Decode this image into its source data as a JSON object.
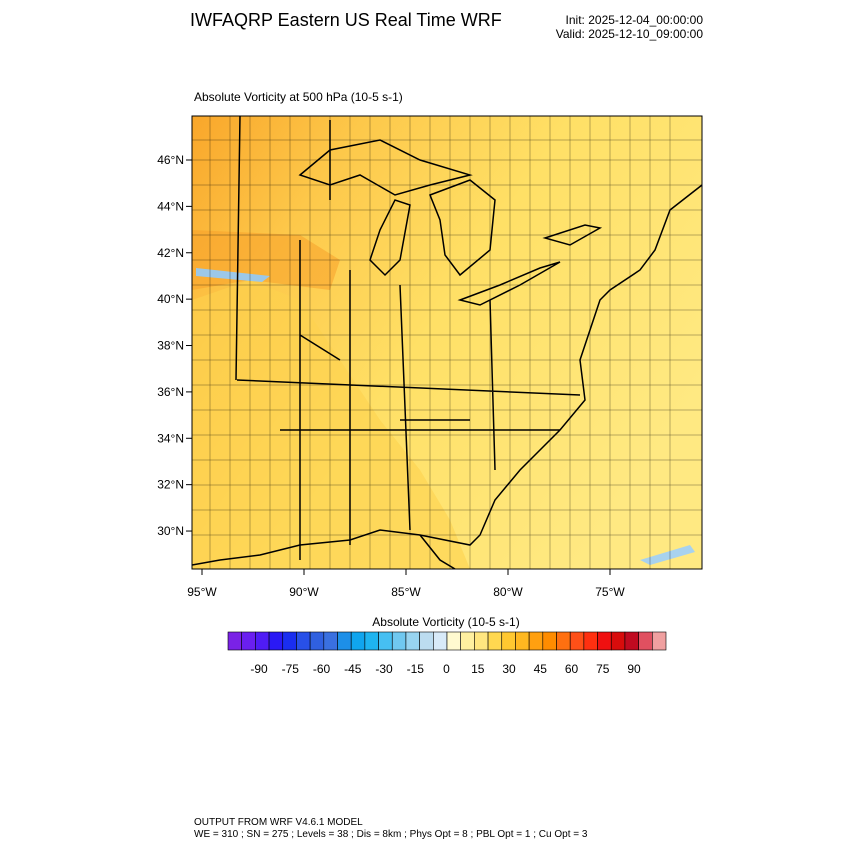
{
  "header": {
    "title": "IWFAQRP Eastern US Real Time WRF",
    "init": "Init: 2025-12-04_00:00:00",
    "valid": "Valid: 2025-12-10_09:00:00"
  },
  "map": {
    "subtitle": "Absolute Vorticity at 500 hPa   (10-5 s-1)",
    "lat_ticks": [
      {
        "value": 46,
        "label": "46°N"
      },
      {
        "value": 44,
        "label": "44°N"
      },
      {
        "value": 42,
        "label": "42°N"
      },
      {
        "value": 40,
        "label": "40°N"
      },
      {
        "value": 38,
        "label": "38°N"
      },
      {
        "value": 36,
        "label": "36°N"
      },
      {
        "value": 34,
        "label": "34°N"
      },
      {
        "value": 32,
        "label": "32°N"
      },
      {
        "value": 30,
        "label": "30°N"
      }
    ],
    "lon_ticks": [
      {
        "value": -95,
        "label": "95°W"
      },
      {
        "value": -90,
        "label": "90°W"
      },
      {
        "value": -85,
        "label": "85°W"
      },
      {
        "value": -80,
        "label": "80°W"
      },
      {
        "value": -75,
        "label": "75°W"
      }
    ]
  },
  "colorbar": {
    "label": "Absolute Vorticity  (10-5 s-1)",
    "levels": [
      -90,
      -75,
      -60,
      -45,
      -30,
      -15,
      0,
      15,
      30,
      45,
      60,
      75,
      90
    ],
    "colors": [
      "#7a22e6",
      "#6a1ff0",
      "#4f1cf5",
      "#2a19f5",
      "#1a2ef0",
      "#2850e8",
      "#3060e0",
      "#3a70e0",
      "#1d8fe8",
      "#10a5ee",
      "#1eb4f0",
      "#46bff2",
      "#70c8f0",
      "#98d4f0",
      "#bcdcf0",
      "#d8eaf8",
      "#fffad0",
      "#fff0a0",
      "#ffe680",
      "#ffd850",
      "#ffc830",
      "#ffb820",
      "#ffa010",
      "#ff8c00",
      "#ff7010",
      "#ff5018",
      "#ff3010",
      "#f01010",
      "#d80c0c",
      "#c00a20",
      "#e05060",
      "#f0a0a0"
    ]
  },
  "footer": {
    "line1": "OUTPUT FROM WRF V4.6.1 MODEL",
    "line2": "WE = 310 ; SN = 275 ; Levels = 38 ; Dis = 8km ; Phys Opt = 8 ; PBL Opt = 1 ; Cu Opt = 3"
  }
}
